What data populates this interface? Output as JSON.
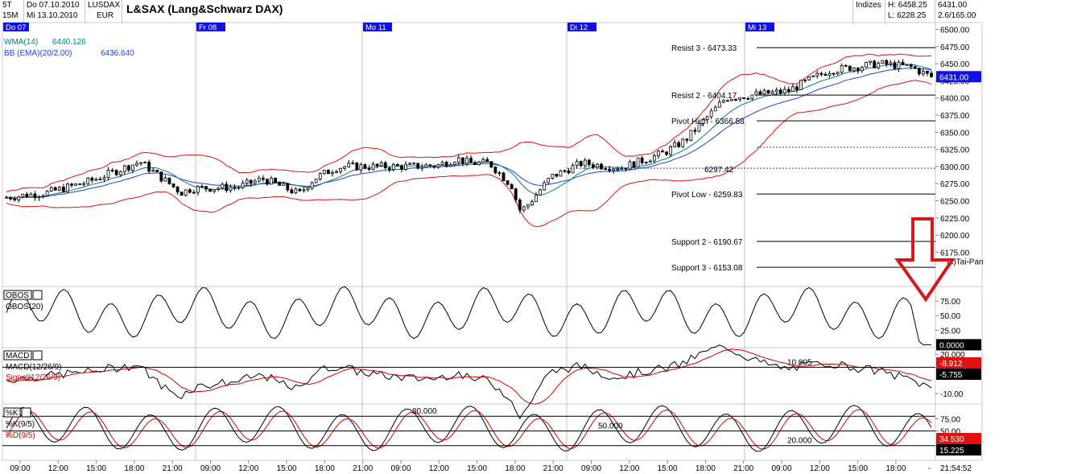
{
  "header": {
    "interval_1": "5T",
    "interval_2": "15M",
    "date_from": "Do 07.10.2010",
    "date_to": "Mi 13.10.2010",
    "source": "LUSDAX",
    "currency": "EUR",
    "title": "L&SAX (Lang&Schwarz DAX)",
    "index_label": "Indizes",
    "high": "H: 6458.25",
    "low": "L: 6228.25",
    "last": "6431.00",
    "change": "2.6/165.00"
  },
  "colors": {
    "price": "#000000",
    "wma": "#008080",
    "bb_band": "#e01010",
    "bb_mid": "#1f3fd0",
    "signal": "#d00000",
    "arrow": "#d81818",
    "day_label_bg": "#1010e0",
    "current_value_bg": "#1010e0",
    "negative_value_bg": "#e01010"
  },
  "chart_data": [
    {
      "panel": "price",
      "type": "candlestick",
      "title": "L&SAX (Lang&Schwarz DAX)",
      "ylim": [
        6125,
        6510
      ],
      "y_ticks": [
        "6500.00",
        "6475.00",
        "6450.00",
        "6425.00",
        "6400.00",
        "6375.00",
        "6350.00",
        "6325.00",
        "6300.00",
        "6275.00",
        "6250.00",
        "6225.00",
        "6200.00",
        "6175.00"
      ],
      "day_labels": [
        "Do 07",
        "Fr 08",
        "Mo 11",
        "Di 12",
        "Mi 13"
      ],
      "time_labels": [
        "09:00",
        "12:00",
        "15:00",
        "18:00",
        "21:00",
        "09:00",
        "12:00",
        "15:00",
        "18:00",
        "21:00",
        "09:00",
        "12:00",
        "15:00",
        "18:00",
        "21:00",
        "09:00",
        "12:00",
        "15:00",
        "18:00",
        "21:00",
        "09:00",
        "12:00",
        "15:00",
        "18:00"
      ],
      "current_time": "21:54:52",
      "indicators": [
        {
          "label": "WMA(14)",
          "value": "6440.126"
        },
        {
          "label": "BB (EMA)(20/2.00)",
          "value": "6436.640"
        }
      ],
      "levels": [
        {
          "label": "Resist 3 - 6473.33",
          "value": 6473.33
        },
        {
          "label": "Resist 2 - 6404.17",
          "value": 6404.17
        },
        {
          "label": "Pivot High - 6366.58",
          "value": 6366.58
        },
        {
          "label": "6297.42",
          "value": 6297.42
        },
        {
          "label": "Pivot Low - 6259.83",
          "value": 6259.83
        },
        {
          "label": "Support 2 - 6190.67",
          "value": 6190.67
        },
        {
          "label": "Support 3 - 6153.08",
          "value": 6153.08
        }
      ],
      "dotted_lines": [
        6297.42,
        6328
      ],
      "current_value_label": "6431.00",
      "watermark": "(c)Tai-Pan",
      "x_anchor": [
        0,
        40,
        80,
        130,
        170,
        180,
        225,
        250,
        285,
        299,
        320,
        330,
        395,
        420,
        438,
        450,
        470,
        493,
        498,
        505,
        530,
        560,
        598,
        640,
        660,
        700
      ],
      "close_anchor": [
        6255,
        6262,
        6278,
        6307,
        6262,
        6268,
        6270,
        6282,
        6260,
        6282,
        6298,
        6300,
        6300,
        6302,
        6312,
        6305,
        6305,
        6270,
        6236,
        6240,
        6285,
        6305,
        6298,
        6320,
        6338,
        6400
      ],
      "more_close_anchor": [
        {
          "x": 760,
          "c": 6410
        },
        {
          "x": 800,
          "c": 6440
        },
        {
          "x": 850,
          "c": 6450
        },
        {
          "x": 880,
          "c": 6445
        },
        {
          "x": 900,
          "c": 6431
        }
      ],
      "series": [
        {
          "name": "Price",
          "close_hint": "see close_anchor"
        },
        {
          "name": "WMA(14)"
        },
        {
          "name": "BB (EMA)(20/2.00)"
        }
      ]
    },
    {
      "panel": "obos",
      "type": "line",
      "button": "OBOS",
      "series": [
        {
          "name": "OBOS(20)"
        }
      ],
      "y_ticks": [
        "75.00",
        "50.00",
        "25.00"
      ],
      "ylim": [
        -5,
        100
      ],
      "current_value_label": "0.0000"
    },
    {
      "panel": "macd",
      "type": "line",
      "button": "MACD",
      "series": [
        {
          "name": "MACD(12/26/9)"
        },
        {
          "name": "Signal(12/26/9)"
        }
      ],
      "y_ticks": [
        "20.000",
        "-10.00"
      ],
      "ylim": [
        -18,
        25
      ],
      "annotation": "10.005",
      "value_labels": [
        "-8.912",
        "-5.755"
      ]
    },
    {
      "panel": "stochastic",
      "type": "line",
      "button": "%K",
      "series": [
        {
          "name": "%K(9/5)"
        },
        {
          "name": "%D(9/5)"
        }
      ],
      "y_ticks": [
        "75.00",
        "50.00"
      ],
      "ylim": [
        -10,
        105
      ],
      "levels": [
        "80.000",
        "50.000",
        "20.000"
      ],
      "value_labels": [
        "34.530",
        "15.225"
      ]
    }
  ]
}
